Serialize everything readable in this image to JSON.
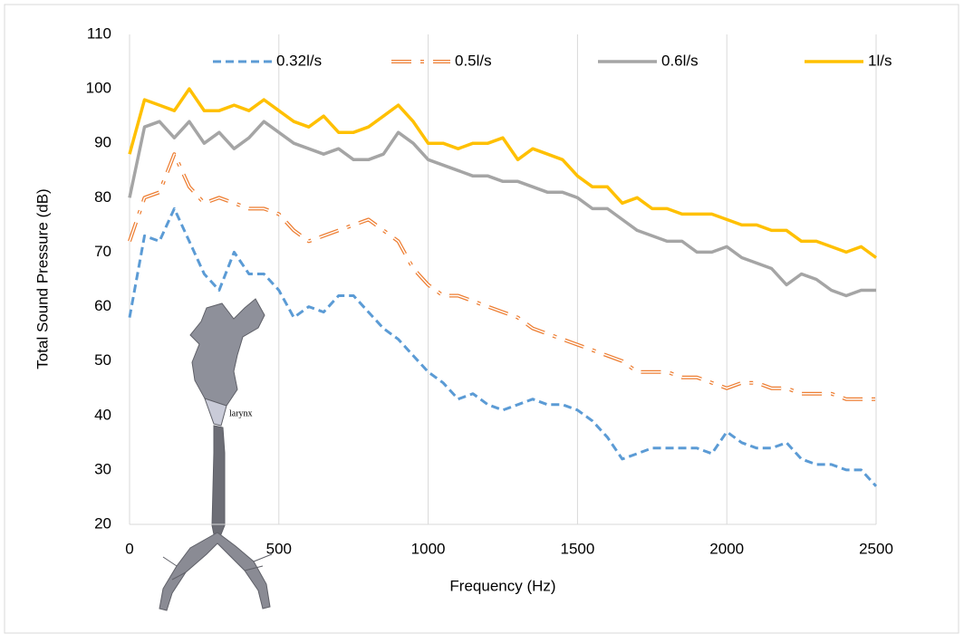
{
  "chart_data": {
    "type": "line",
    "xlabel": "Frequency (Hz)",
    "ylabel": "Total Sound Pressure (dB)",
    "x": [
      0,
      50,
      100,
      150,
      200,
      250,
      300,
      350,
      400,
      450,
      500,
      550,
      600,
      650,
      700,
      750,
      800,
      850,
      900,
      950,
      1000,
      1050,
      1100,
      1150,
      1200,
      1250,
      1300,
      1350,
      1400,
      1450,
      1500,
      1550,
      1600,
      1650,
      1700,
      1750,
      1800,
      1850,
      1900,
      1950,
      2000,
      2050,
      2100,
      2150,
      2200,
      2250,
      2300,
      2350,
      2400,
      2450,
      2500
    ],
    "series": [
      {
        "name": "0.32l/s",
        "color": "#5b9bd5",
        "style": "dashed",
        "values": [
          58,
          73,
          72,
          78,
          72,
          66,
          63,
          70,
          66,
          66,
          63,
          58,
          60,
          59,
          62,
          62,
          59,
          56,
          54,
          51,
          48,
          46,
          43,
          44,
          42,
          41,
          42,
          43,
          42,
          42,
          41,
          39,
          36,
          32,
          33,
          34,
          34,
          34,
          34,
          33,
          37,
          35,
          34,
          34,
          35,
          32,
          31,
          31,
          30,
          30,
          27
        ]
      },
      {
        "name": "0.5l/s",
        "color": "#ed7d31",
        "style": "dash-dot-outline",
        "values": [
          72,
          80,
          81,
          88,
          82,
          79,
          80,
          79,
          78,
          78,
          77,
          74,
          72,
          73,
          74,
          75,
          76,
          74,
          72,
          67,
          64,
          62,
          62,
          61,
          60,
          59,
          58,
          56,
          55,
          54,
          53,
          52,
          51,
          50,
          48,
          48,
          48,
          47,
          47,
          46,
          45,
          46,
          46,
          45,
          45,
          44,
          44,
          44,
          43,
          43,
          43
        ]
      },
      {
        "name": "0.6l/s",
        "color": "#a5a5a5",
        "style": "solid",
        "values": [
          80,
          93,
          94,
          91,
          94,
          90,
          92,
          89,
          91,
          94,
          92,
          90,
          89,
          88,
          89,
          87,
          87,
          88,
          92,
          90,
          87,
          86,
          85,
          84,
          84,
          83,
          83,
          82,
          81,
          81,
          80,
          78,
          78,
          76,
          74,
          73,
          72,
          72,
          70,
          70,
          71,
          69,
          68,
          67,
          64,
          66,
          65,
          63,
          62,
          63,
          63
        ]
      },
      {
        "name": "1l/s",
        "color": "#ffc000",
        "style": "solid",
        "values": [
          88,
          98,
          97,
          96,
          100,
          96,
          96,
          97,
          96,
          98,
          96,
          94,
          93,
          95,
          92,
          92,
          93,
          95,
          97,
          94,
          90,
          90,
          89,
          90,
          90,
          91,
          87,
          89,
          88,
          87,
          84,
          82,
          82,
          79,
          80,
          78,
          78,
          77,
          77,
          77,
          76,
          75,
          75,
          74,
          74,
          72,
          72,
          71,
          70,
          71,
          69
        ]
      }
    ],
    "xlim": [
      0,
      2500
    ],
    "xticks": [
      0,
      500,
      1000,
      1500,
      2000,
      2500
    ],
    "ylim": [
      20,
      110
    ],
    "yticks": [
      20,
      30,
      40,
      50,
      60,
      70,
      80,
      90,
      100,
      110
    ],
    "grid": "x",
    "legend": "top",
    "inset_label": "larynx"
  }
}
